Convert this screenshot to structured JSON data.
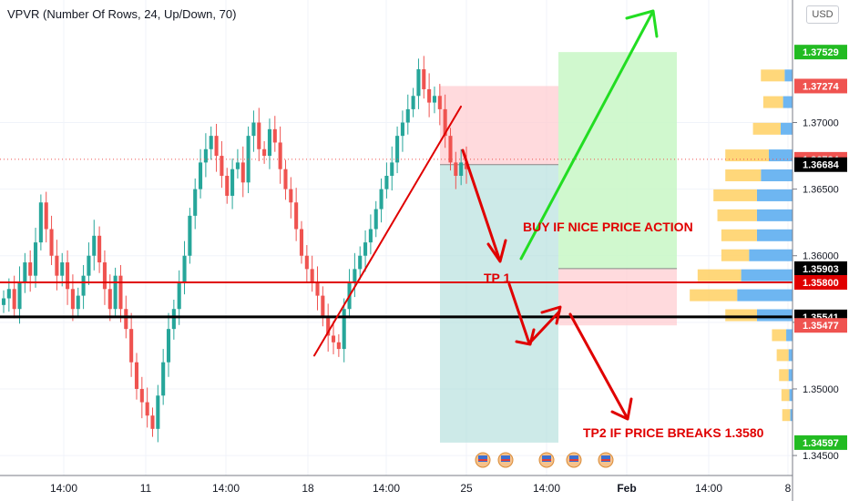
{
  "indicator": {
    "title": "VPVR (Number Of Rows, 24, Up/Down, 70)"
  },
  "currency_label": "USD",
  "annotations": {
    "buy": "BUY IF NICE PRICE ACTION",
    "tp1": "TP 1",
    "tp2": "TP2 IF PRICE BREAKS 1.3580"
  },
  "colors": {
    "up": "#26a69a",
    "down": "#ef5350",
    "red_line": "#e00000",
    "black_line": "#000000",
    "green_arrow": "#22dd22",
    "tp_zone": "#b2dfdb",
    "sl_zone": "#ffcdd2",
    "long_target": "#c8f7c5",
    "vpvr_up": "#5eaef0",
    "vpvr_down": "#ffd36b"
  },
  "chart_data": {
    "type": "candlestick",
    "symbol_currency": "USD",
    "ylim": [
      1.3435,
      1.3792
    ],
    "y_ticks": [
      1.345,
      1.35,
      1.355,
      1.36,
      1.365,
      1.37
    ],
    "x_tick_labels": [
      "14:00",
      "11",
      "14:00",
      "18",
      "14:00",
      "25",
      "14:00",
      "Feb",
      "14:00",
      "8"
    ],
    "price_labels": [
      {
        "value": 1.37529,
        "label": "1.37529",
        "color": "#22bb22"
      },
      {
        "value": 1.37274,
        "label": "1.37274",
        "color": "#ef5350"
      },
      {
        "value": 1.36724,
        "label": "1.36724",
        "color": "#ef5350"
      },
      {
        "value": 1.36684,
        "label": "1.36684",
        "color": "#000000"
      },
      {
        "value": 1.35903,
        "label": "1.35903",
        "color": "#000000"
      },
      {
        "value": 1.358,
        "label": "1.35800",
        "color": "#e00000"
      },
      {
        "value": 1.35541,
        "label": "1.35541",
        "color": "#000000"
      },
      {
        "value": 1.35477,
        "label": "1.35477",
        "color": "#ef5350"
      },
      {
        "value": 1.34597,
        "label": "1.34597",
        "color": "#22bb22"
      }
    ],
    "horizontal_lines": [
      {
        "value": 1.358,
        "color": "#e00000"
      },
      {
        "value": 1.35541,
        "color": "#000000"
      }
    ],
    "closes": [
      1.3568,
      1.3575,
      1.356,
      1.358,
      1.3595,
      1.3585,
      1.361,
      1.364,
      1.362,
      1.36,
      1.3585,
      1.3595,
      1.3575,
      1.356,
      1.357,
      1.3585,
      1.36,
      1.3615,
      1.3595,
      1.3575,
      1.356,
      1.3585,
      1.356,
      1.3545,
      1.352,
      1.35,
      1.349,
      1.348,
      1.347,
      1.3495,
      1.352,
      1.3545,
      1.356,
      1.358,
      1.36,
      1.363,
      1.365,
      1.367,
      1.368,
      1.369,
      1.3675,
      1.366,
      1.3645,
      1.3665,
      1.367,
      1.3655,
      1.369,
      1.37,
      1.368,
      1.3675,
      1.3695,
      1.3685,
      1.3665,
      1.365,
      1.364,
      1.362,
      1.36,
      1.359,
      1.358,
      1.357,
      1.3555,
      1.354,
      1.3535,
      1.353,
      1.356,
      1.358,
      1.359,
      1.36,
      1.361,
      1.362,
      1.3635,
      1.365,
      1.366,
      1.367,
      1.369,
      1.37,
      1.371,
      1.372,
      1.374,
      1.3725,
      1.3715,
      1.372,
      1.371,
      1.369,
      1.367,
      1.366,
      1.367,
      1.3665
    ],
    "candle_span_x": [
      4,
      512
    ],
    "vpvr": [
      {
        "price": 1.3735,
        "up": 0.1,
        "down": 0.3
      },
      {
        "price": 1.3715,
        "up": 0.12,
        "down": 0.25
      },
      {
        "price": 1.3695,
        "up": 0.15,
        "down": 0.35
      },
      {
        "price": 1.3675,
        "up": 0.3,
        "down": 0.55
      },
      {
        "price": 1.366,
        "up": 0.4,
        "down": 0.45
      },
      {
        "price": 1.3645,
        "up": 0.45,
        "down": 0.55
      },
      {
        "price": 1.363,
        "up": 0.45,
        "down": 0.5
      },
      {
        "price": 1.3615,
        "up": 0.45,
        "down": 0.45
      },
      {
        "price": 1.36,
        "up": 0.55,
        "down": 0.35
      },
      {
        "price": 1.3585,
        "up": 0.65,
        "down": 0.55
      },
      {
        "price": 1.357,
        "up": 0.7,
        "down": 0.6
      },
      {
        "price": 1.3555,
        "up": 0.45,
        "down": 0.4
      },
      {
        "price": 1.354,
        "up": 0.08,
        "down": 0.18
      },
      {
        "price": 1.3525,
        "up": 0.05,
        "down": 0.15
      },
      {
        "price": 1.351,
        "up": 0.05,
        "down": 0.12
      },
      {
        "price": 1.3495,
        "up": 0.04,
        "down": 0.1
      },
      {
        "price": 1.348,
        "up": 0.03,
        "down": 0.1
      }
    ],
    "positions": {
      "short": {
        "entry": 1.36684,
        "stop": 1.37274,
        "target": 1.34597
      },
      "long": {
        "entry": 1.35903,
        "stop": 1.35477,
        "target": 1.37529
      }
    }
  }
}
